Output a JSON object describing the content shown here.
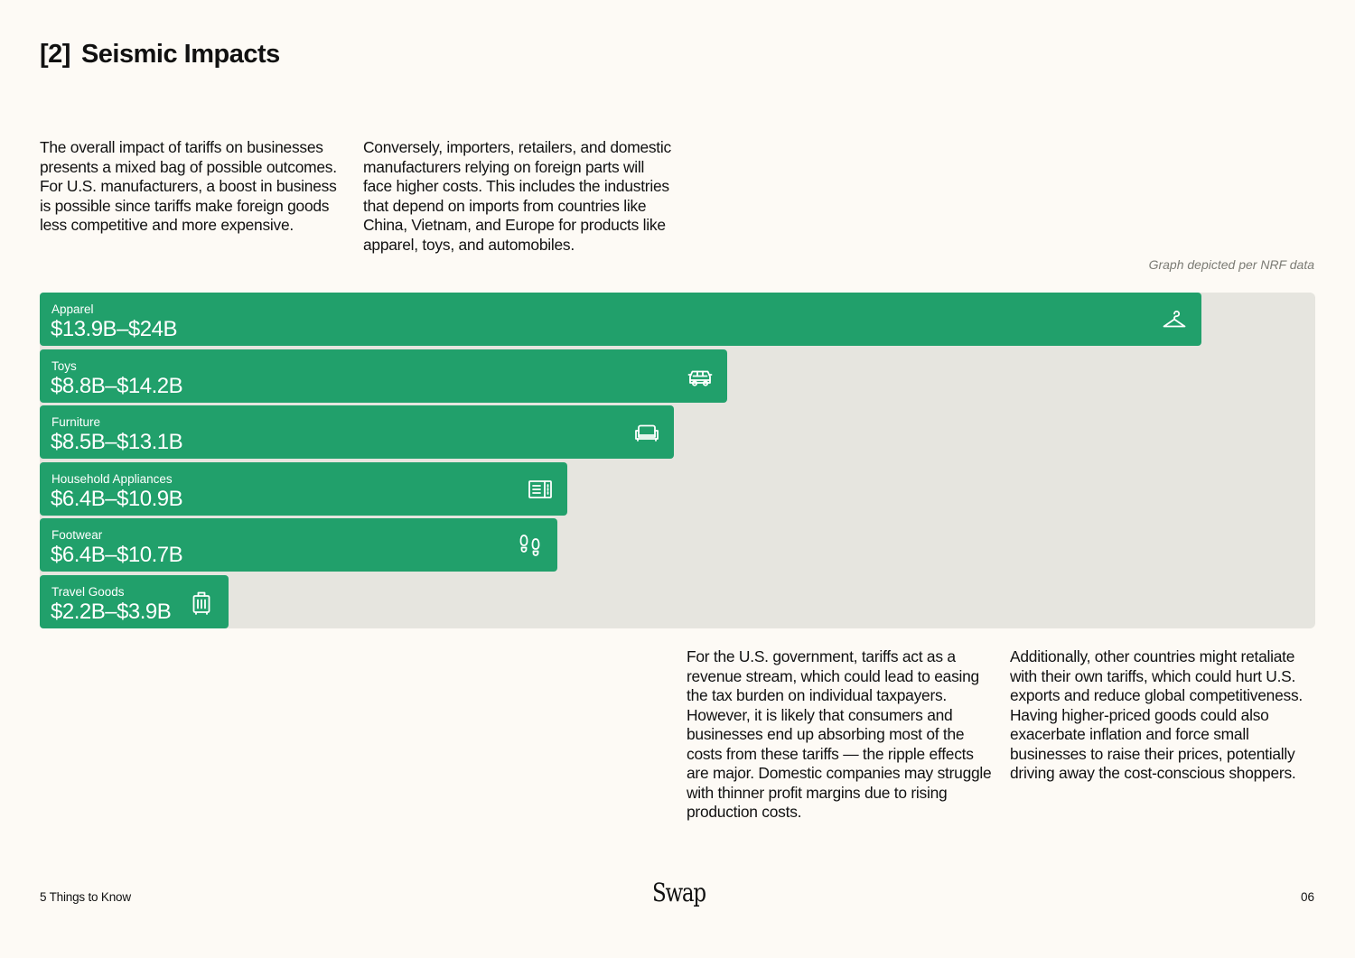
{
  "header": {
    "section_num": "[2]",
    "title": "Seismic Impacts"
  },
  "paragraphs": {
    "p1": "The overall impact of tariffs on businesses presents a mixed bag of possible outcomes. For U.S. manufacturers, a boost in business is possible since tariffs make foreign goods less competitive and more expensive.",
    "p2": "Conversely, importers, retailers, and domestic manufacturers relying on foreign parts will face higher costs. This includes the industries that depend on imports from countries like China, Vietnam, and Europe for products like apparel, toys, and automobiles.",
    "p3": "For the U.S. government, tariffs act as a revenue stream, which could lead to easing the tax burden on individual taxpayers. However, it is likely that consumers and businesses end up absorbing most of the costs from these tariffs — the ripple effects are major. Domestic companies may struggle with thinner profit margins due to rising production costs.",
    "p4": "Additionally, other countries might retaliate with their own tariffs, which could hurt U.S. exports and reduce global competitiveness. Having higher-priced goods could also exacerbate inflation and force small businesses to raise their prices, potentially driving away the cost-conscious shoppers."
  },
  "source_note": "Graph depicted per NRF data",
  "chart_data": {
    "type": "bar",
    "orientation": "horizontal",
    "unit": "$B",
    "xlim": [
      0,
      26.35
    ],
    "colors": {
      "bar": "#21a06b",
      "track": "#e6e5df"
    },
    "categories": [
      "Apparel",
      "Toys",
      "Furniture",
      "Household Appliances",
      "Footwear",
      "Travel Goods"
    ],
    "series": [
      {
        "values_low": [
          13.9,
          8.8,
          8.5,
          6.4,
          6.4,
          2.2
        ],
        "values_high": [
          24,
          14.2,
          13.1,
          10.9,
          10.7,
          3.9
        ]
      }
    ],
    "labels": [
      "$13.9B–$24B",
      "$8.8B–$14.2B",
      "$8.5B–$13.1B",
      "$6.4B–$10.9B",
      "$6.4B–$10.7B",
      "$2.2B–$3.9B"
    ],
    "icons": [
      "hanger-icon",
      "car-icon",
      "sofa-icon",
      "microwave-icon",
      "footprints-icon",
      "luggage-icon"
    ]
  },
  "footer": {
    "left": "5 Things to Know",
    "logo": "Swap",
    "page": "06"
  }
}
